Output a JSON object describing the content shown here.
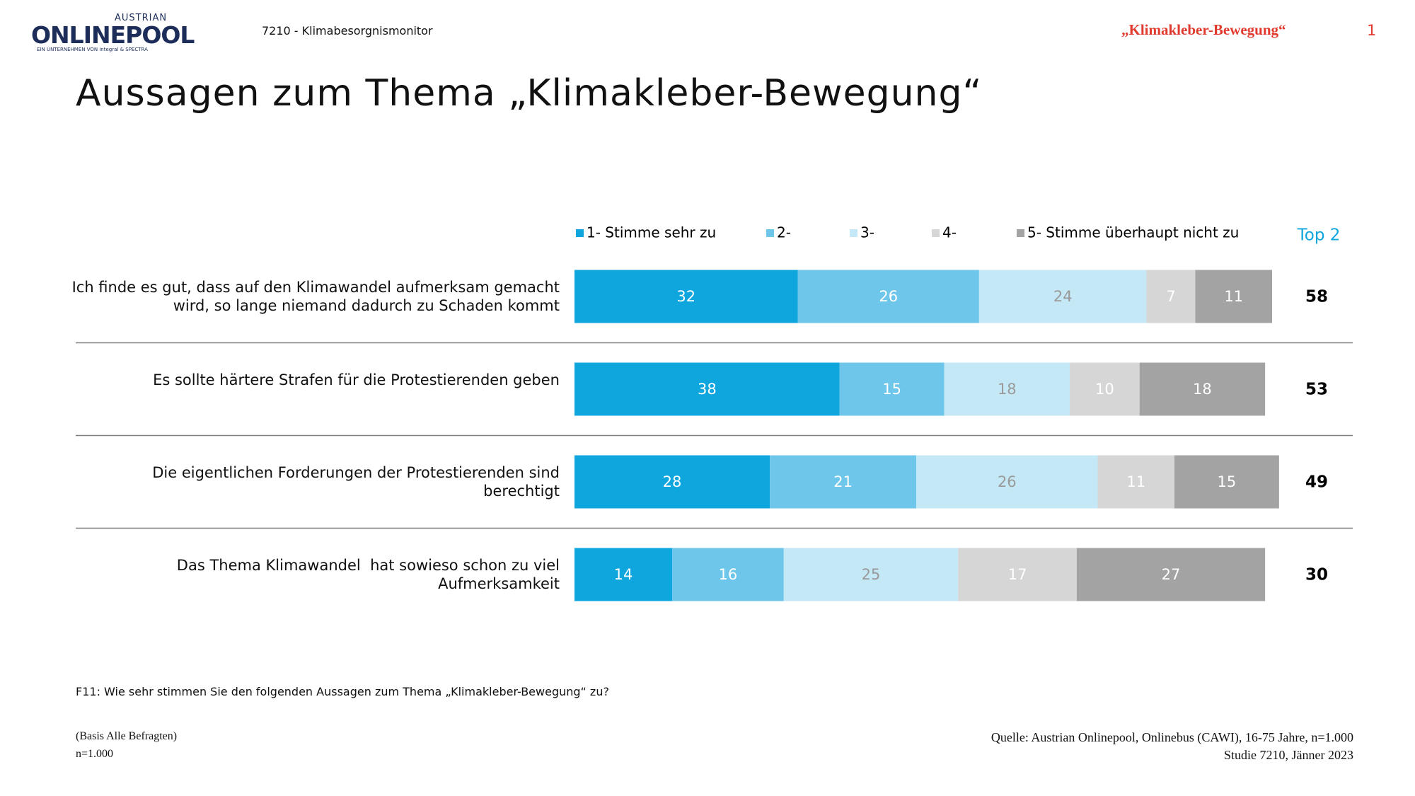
{
  "header": {
    "logo_top": "AUSTRIAN",
    "logo_main": "ONLINEPOOL",
    "logo_sub": "EIN UNTERNEHMEN VON integral & SPECTRA",
    "study": "7210 - Klimabesorgnismonitor",
    "topic": "„Klimakleber-Bewegung“",
    "page": "1"
  },
  "chart_data": {
    "type": "stacked-bar-horizontal",
    "title": "Aussagen zum Thema „Klimakleber-Bewegung“",
    "categories": [
      "Ich finde es gut, dass auf den Klimawandel aufmerksam gemacht wird, so lange niemand dadurch zu Schaden kommt",
      "Es sollte härtere Strafen für die Protestierenden geben",
      "Die eigentlichen Forderungen der Protestierenden sind berechtigt",
      "Das Thema Klimawandel  hat sowieso schon zu viel Aufmerksamkeit"
    ],
    "series": [
      {
        "name": "1- Stimme sehr zu",
        "color": "#0fa5dd",
        "label_color": "#ffffff",
        "values": [
          32,
          38,
          28,
          14
        ]
      },
      {
        "name": "2-",
        "color": "#6ec6ea",
        "label_color": "#ffffff",
        "values": [
          26,
          15,
          21,
          16
        ]
      },
      {
        "name": "3-",
        "color": "#c4e8f6",
        "label_color": "#9a9a9a",
        "values": [
          24,
          18,
          26,
          25
        ]
      },
      {
        "name": "4-",
        "color": "#d6d6d6",
        "label_color": "#ffffff",
        "values": [
          7,
          10,
          11,
          17
        ]
      },
      {
        "name": "5- Stimme überhaupt nicht zu",
        "color": "#a3a3a3",
        "label_color": "#ffffff",
        "values": [
          11,
          18,
          15,
          27
        ]
      }
    ],
    "top2": {
      "label": "Top 2",
      "values": [
        58,
        53,
        49,
        30
      ]
    },
    "legend": "top"
  },
  "footer": {
    "question": "F11: Wie sehr stimmen Sie den folgenden Aussagen zum Thema „Klimakleber-Bewegung“ zu?",
    "basis": "(Basis Alle Befragten)",
    "n": "n=1.000",
    "source": "Quelle: Austrian Onlinepool, Onlinebus (CAWI), 16-75 Jahre, n=1.000",
    "study": "Studie 7210, Jänner 2023"
  }
}
